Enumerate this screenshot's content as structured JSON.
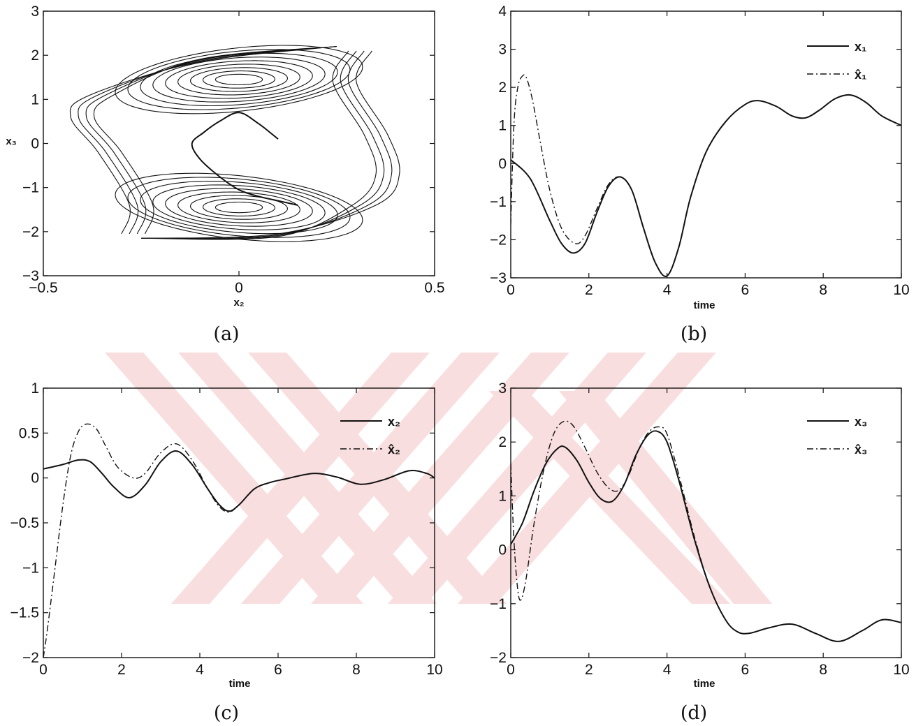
{
  "figure": {
    "watermark_color": "#f6c9cc",
    "line_color": "#111111"
  },
  "chart_data": [
    {
      "type": "line",
      "caption": "(a)",
      "xlabel": "x₂",
      "ylabel": "x₃",
      "xlim": [
        -0.5,
        0.5
      ],
      "ylim": [
        -3,
        3
      ],
      "xticks": [
        -0.5,
        0,
        0.5
      ],
      "xtick_labels": [
        "−0.5",
        "0",
        "0.5"
      ],
      "yticks": [
        -3,
        -2,
        -1,
        0,
        1,
        2,
        3
      ],
      "ytick_labels": [
        "−3",
        "−2",
        "−1",
        "0",
        "1",
        "2",
        "3"
      ],
      "grid": false,
      "attractor": {
        "description_values": "phase portrait of x3 versus x2 (double-scroll)",
        "upper_scroll_center": [
          0,
          1.45
        ],
        "lower_scroll_center": [
          0,
          -1.45
        ],
        "x_extent": [
          -0.44,
          0.41
        ],
        "y_extent": [
          -2.2,
          2.25
        ]
      },
      "series": [
        {
          "style": "solid",
          "x": [
            0.1,
            0.05,
            0.0,
            -0.05,
            -0.09,
            -0.12,
            -0.1,
            -0.05,
            0.0,
            0.05,
            0.1,
            0.15
          ],
          "y": [
            0.1,
            0.45,
            0.7,
            0.5,
            0.25,
            0.0,
            -0.35,
            -0.75,
            -1.05,
            -1.2,
            -1.3,
            -1.4
          ]
        }
      ]
    },
    {
      "type": "line",
      "caption": "(b)",
      "xlabel": "time",
      "xlim": [
        0,
        10
      ],
      "ylim": [
        -3,
        4
      ],
      "xticks": [
        0,
        2,
        4,
        6,
        8,
        10
      ],
      "xtick_labels": [
        "0",
        "2",
        "4",
        "6",
        "8",
        "10"
      ],
      "yticks": [
        -3,
        -2,
        -1,
        0,
        1,
        2,
        3,
        4
      ],
      "ytick_labels": [
        "−3",
        "−2",
        "−1",
        "0",
        "1",
        "2",
        "3",
        "4"
      ],
      "grid": false,
      "legend": {
        "position": "top-right",
        "entries": [
          {
            "label": "x₁",
            "style": "solid"
          },
          {
            "label": "x̂₁",
            "style": "dashdot"
          }
        ]
      },
      "series": [
        {
          "name": "x₁",
          "style": "solid",
          "x": [
            0,
            0.5,
            1.0,
            1.3,
            1.6,
            1.9,
            2.2,
            2.5,
            2.8,
            3.1,
            3.4,
            3.7,
            4.0,
            4.3,
            4.6,
            5.0,
            5.5,
            6.0,
            6.35,
            6.8,
            7.2,
            7.55,
            7.9,
            8.3,
            8.7,
            9.1,
            9.5,
            10.0
          ],
          "y": [
            0.1,
            -0.4,
            -1.5,
            -2.1,
            -2.35,
            -2.1,
            -1.3,
            -0.6,
            -0.35,
            -0.7,
            -1.7,
            -2.6,
            -2.95,
            -2.2,
            -0.9,
            0.3,
            1.1,
            1.55,
            1.65,
            1.5,
            1.25,
            1.2,
            1.4,
            1.7,
            1.8,
            1.6,
            1.25,
            1.0
          ]
        },
        {
          "name": "x̂₁",
          "style": "dashdot",
          "x": [
            0,
            0.08,
            0.18,
            0.3,
            0.4,
            0.55,
            0.75,
            1.0,
            1.3,
            1.65,
            1.9,
            2.2,
            2.5,
            2.8,
            3.1,
            3.4,
            3.7,
            4.0,
            4.3,
            4.6,
            5.0,
            5.5,
            6.0,
            6.35,
            6.8,
            7.2,
            7.55,
            7.9,
            8.3,
            8.7,
            9.1,
            9.5,
            10.0
          ],
          "y": [
            -1.6,
            1.0,
            2.0,
            2.3,
            2.25,
            1.7,
            0.6,
            -0.7,
            -1.7,
            -2.1,
            -1.9,
            -1.2,
            -0.55,
            -0.35,
            -0.7,
            -1.7,
            -2.6,
            -2.95,
            -2.2,
            -0.9,
            0.3,
            1.1,
            1.55,
            1.65,
            1.5,
            1.25,
            1.2,
            1.4,
            1.7,
            1.8,
            1.6,
            1.25,
            1.0
          ]
        }
      ]
    },
    {
      "type": "line",
      "caption": "(c)",
      "xlabel": "time",
      "xlim": [
        0,
        10
      ],
      "ylim": [
        -2,
        1
      ],
      "xticks": [
        0,
        2,
        4,
        6,
        8,
        10
      ],
      "xtick_labels": [
        "0",
        "2",
        "4",
        "6",
        "8",
        "10"
      ],
      "yticks": [
        -2,
        -1.5,
        -1,
        -0.5,
        0,
        0.5,
        1
      ],
      "ytick_labels": [
        "−2",
        "−1.5",
        "−1",
        "−0.5",
        "0",
        "0.5",
        "1"
      ],
      "grid": false,
      "legend": {
        "position": "top-right",
        "entries": [
          {
            "label": "x₂",
            "style": "solid"
          },
          {
            "label": "x̂₂",
            "style": "dashdot"
          }
        ]
      },
      "series": [
        {
          "name": "x₂",
          "style": "solid",
          "x": [
            0,
            0.5,
            0.9,
            1.2,
            1.5,
            1.8,
            2.2,
            2.6,
            3.0,
            3.4,
            3.8,
            4.2,
            4.5,
            4.75,
            5.0,
            5.4,
            5.8,
            6.2,
            6.9,
            7.5,
            8.1,
            8.7,
            9.35,
            9.8,
            10.0
          ],
          "y": [
            0.1,
            0.15,
            0.2,
            0.18,
            0.05,
            -0.1,
            -0.22,
            -0.08,
            0.18,
            0.3,
            0.15,
            -0.12,
            -0.3,
            -0.37,
            -0.3,
            -0.12,
            -0.05,
            -0.01,
            0.05,
            0.01,
            -0.07,
            -0.02,
            0.08,
            0.05,
            0.0
          ]
        },
        {
          "name": "x̂₂",
          "style": "dashdot",
          "x": [
            0,
            0.1,
            0.3,
            0.5,
            0.7,
            0.9,
            1.1,
            1.35,
            1.6,
            1.9,
            2.3,
            2.6,
            3.0,
            3.4,
            3.8,
            4.2,
            4.5,
            4.75,
            5.0,
            5.4,
            5.8,
            6.2,
            6.9,
            7.5,
            8.1,
            8.7,
            9.35,
            9.8,
            10.0
          ],
          "y": [
            -2.0,
            -1.7,
            -1.0,
            -0.3,
            0.25,
            0.52,
            0.6,
            0.55,
            0.35,
            0.12,
            0.0,
            0.05,
            0.28,
            0.38,
            0.2,
            -0.12,
            -0.32,
            -0.38,
            -0.3,
            -0.12,
            -0.05,
            -0.01,
            0.05,
            0.01,
            -0.07,
            -0.02,
            0.08,
            0.05,
            0.0
          ]
        }
      ]
    },
    {
      "type": "line",
      "caption": "(d)",
      "xlabel": "time",
      "xlim": [
        0,
        10
      ],
      "ylim": [
        -2,
        3
      ],
      "xticks": [
        0,
        2,
        4,
        6,
        8,
        10
      ],
      "xtick_labels": [
        "0",
        "2",
        "4",
        "6",
        "8",
        "10"
      ],
      "yticks": [
        -2,
        -1,
        0,
        1,
        2,
        3
      ],
      "ytick_labels": [
        "−2",
        "−1",
        "0",
        "1",
        "2",
        "3"
      ],
      "grid": false,
      "legend": {
        "position": "top-right",
        "entries": [
          {
            "label": "x₃",
            "style": "solid"
          },
          {
            "label": "x̂₃",
            "style": "dashdot"
          }
        ]
      },
      "series": [
        {
          "name": "x₃",
          "style": "solid",
          "x": [
            0,
            0.3,
            0.6,
            0.9,
            1.2,
            1.4,
            1.7,
            2.0,
            2.3,
            2.6,
            2.9,
            3.2,
            3.5,
            3.75,
            4.0,
            4.3,
            4.7,
            5.1,
            5.5,
            5.8,
            6.1,
            6.6,
            7.2,
            7.8,
            8.4,
            9.0,
            9.5,
            10.0
          ],
          "y": [
            0.1,
            0.5,
            1.1,
            1.6,
            1.88,
            1.9,
            1.65,
            1.25,
            0.95,
            0.9,
            1.2,
            1.75,
            2.12,
            2.2,
            2.0,
            1.3,
            0.2,
            -0.7,
            -1.3,
            -1.52,
            -1.55,
            -1.45,
            -1.38,
            -1.55,
            -1.7,
            -1.5,
            -1.3,
            -1.35
          ]
        },
        {
          "name": "x̂₃",
          "style": "dashdot",
          "x": [
            0,
            0.08,
            0.18,
            0.27,
            0.4,
            0.6,
            0.85,
            1.1,
            1.35,
            1.6,
            1.9,
            2.2,
            2.5,
            2.75,
            3.0,
            3.3,
            3.55,
            3.8,
            4.0,
            4.3,
            4.7,
            5.1,
            5.5,
            5.8,
            6.1,
            6.6,
            7.2,
            7.8,
            8.4,
            9.0,
            9.5,
            10.0
          ],
          "y": [
            1.6,
            0.2,
            -0.75,
            -0.92,
            -0.5,
            0.5,
            1.5,
            2.15,
            2.38,
            2.3,
            1.9,
            1.45,
            1.15,
            1.1,
            1.35,
            1.9,
            2.2,
            2.28,
            2.15,
            1.4,
            0.25,
            -0.7,
            -1.3,
            -1.52,
            -1.55,
            -1.45,
            -1.38,
            -1.55,
            -1.7,
            -1.5,
            -1.3,
            -1.35
          ]
        }
      ]
    }
  ]
}
